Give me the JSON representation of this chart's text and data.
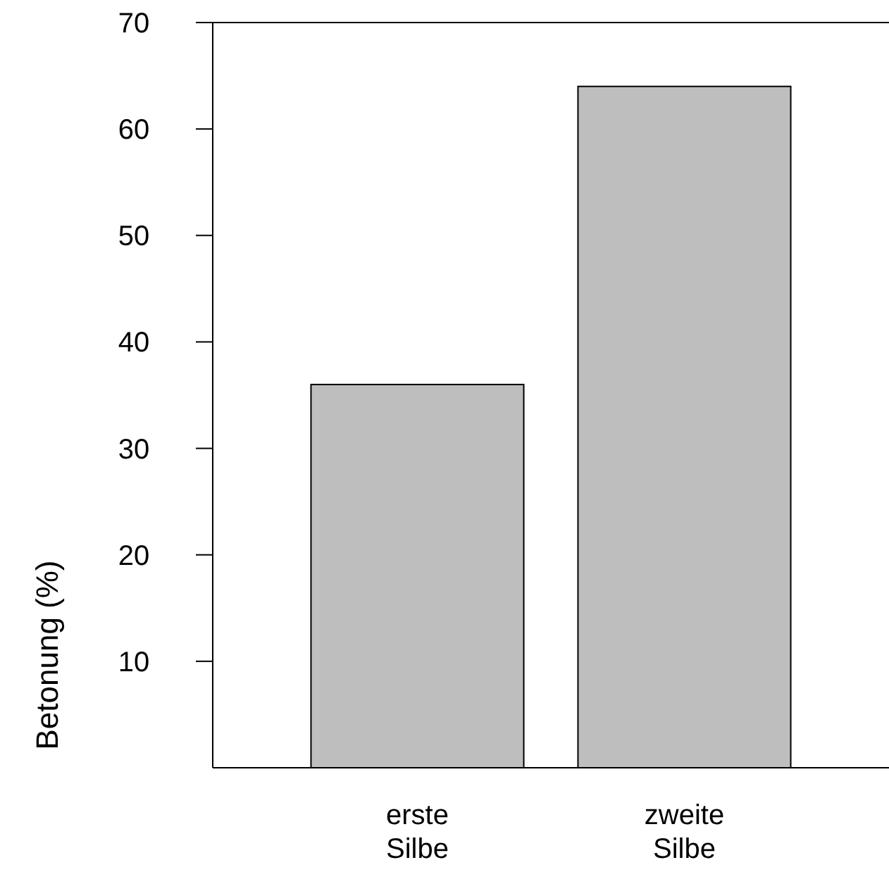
{
  "chart_data": {
    "type": "bar",
    "ylabel": "Betonung (%)",
    "categories": [
      "erste Silbe",
      "zweite Silbe"
    ],
    "values": [
      36,
      64
    ],
    "color": "#bebebe",
    "ylim": [
      0,
      70
    ],
    "yticks": [
      10,
      20,
      30,
      40,
      50,
      60,
      70
    ],
    "grid": false
  }
}
